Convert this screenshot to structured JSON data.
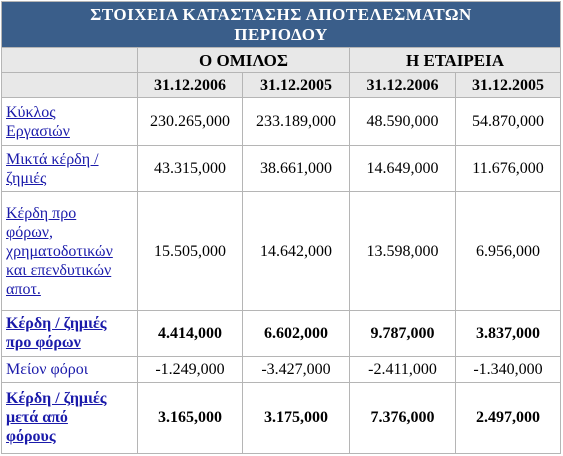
{
  "title_line1": "ΣΤΟΙΧΕΙΑ ΚΑΤΑΣΤΑΣΗΣ ΑΠΟΤΕΛΕΣΜΑΤΩΝ",
  "title_line2": "ΠΕΡΙΟΔΟΥ",
  "groups": [
    "Ο ΟΜΙΛΟΣ",
    "Η ΕΤΑΙΡΕΙΑ"
  ],
  "dates": [
    "31.12.2006",
    "31.12.2005",
    "31.12.2006",
    "31.12.2005"
  ],
  "rows": [
    {
      "label_lines": [
        "Κύκλος",
        "Εργασιών"
      ],
      "values": [
        "230.265,000",
        "233.189,000",
        "48.590,000",
        "54.870,000"
      ]
    },
    {
      "label_lines": [
        "Μικτά κέρδη /",
        "ζημιές"
      ],
      "values": [
        "43.315,000",
        "38.661,000",
        "14.649,000",
        "11.676,000"
      ]
    },
    {
      "label_lines": [
        "Κέρδη προ",
        "φόρων,",
        "χρηματοδοτικών",
        "και επενδυτικών",
        "αποτ."
      ],
      "values": [
        "15.505,000",
        "14.642,000",
        "13.598,000",
        "6.956,000"
      ]
    },
    {
      "label_lines": [
        "Κέρδη / ζημιές",
        "προ φόρων"
      ],
      "values": [
        "4.414,000",
        "6.602,000",
        "9.787,000",
        "3.837,000"
      ]
    },
    {
      "label_lines": [
        "Μείον φόροι"
      ],
      "values": [
        "-1.249,000",
        "-3.427,000",
        "-2.411,000",
        "-1.340,000"
      ]
    },
    {
      "label_lines": [
        "Κέρδη / ζημιές",
        "μετά από",
        "φόρους"
      ],
      "values": [
        "3.165,000",
        "3.175,000",
        "7.376,000",
        "2.497,000"
      ]
    }
  ]
}
